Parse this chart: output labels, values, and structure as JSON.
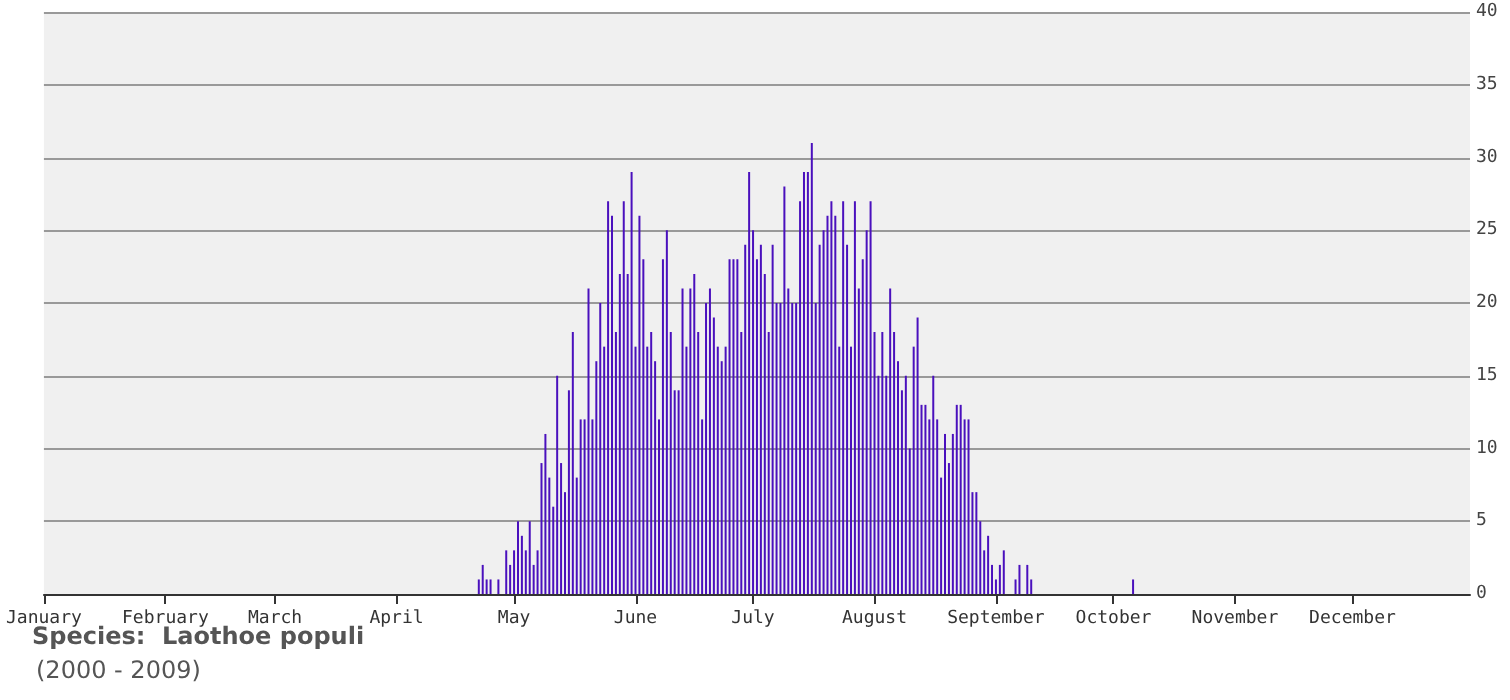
{
  "chart_data": {
    "type": "bar",
    "color": "#4a10bd",
    "x": [
      "--04-22",
      "--04-23",
      "--04-24",
      "--04-25",
      "--04-27",
      "--04-29",
      "--04-30",
      "--05-01",
      "--05-02",
      "--05-03",
      "--05-04",
      "--05-05",
      "--05-06",
      "--05-07",
      "--05-08",
      "--05-09",
      "--05-10",
      "--05-11",
      "--05-12",
      "--05-13",
      "--05-14",
      "--05-15",
      "--05-16",
      "--05-17",
      "--05-18",
      "--05-19",
      "--05-20",
      "--05-21",
      "--05-22",
      "--05-23",
      "--05-24",
      "--05-25",
      "--05-26",
      "--05-27",
      "--05-28",
      "--05-29",
      "--05-30",
      "--05-31",
      "--06-01",
      "--06-02",
      "--06-03",
      "--06-04",
      "--06-05",
      "--06-06",
      "--06-07",
      "--06-08",
      "--06-09",
      "--06-10",
      "--06-11",
      "--06-12",
      "--06-13",
      "--06-14",
      "--06-15",
      "--06-16",
      "--06-17",
      "--06-18",
      "--06-19",
      "--06-20",
      "--06-21",
      "--06-22",
      "--06-23",
      "--06-24",
      "--06-25",
      "--06-26",
      "--06-27",
      "--06-28",
      "--06-29",
      "--06-30",
      "--07-01",
      "--07-02",
      "--07-03",
      "--07-04",
      "--07-05",
      "--07-06",
      "--07-07",
      "--07-08",
      "--07-09",
      "--07-10",
      "--07-11",
      "--07-12",
      "--07-13",
      "--07-14",
      "--07-15",
      "--07-16",
      "--07-17",
      "--07-18",
      "--07-19",
      "--07-20",
      "--07-21",
      "--07-22",
      "--07-23",
      "--07-24",
      "--07-25",
      "--07-26",
      "--07-27",
      "--07-28",
      "--07-29",
      "--07-30",
      "--07-31",
      "--08-01",
      "--08-02",
      "--08-03",
      "--08-04",
      "--08-05",
      "--08-06",
      "--08-07",
      "--08-08",
      "--08-09",
      "--08-10",
      "--08-11",
      "--08-12",
      "--08-13",
      "--08-14",
      "--08-15",
      "--08-16",
      "--08-17",
      "--08-18",
      "--08-19",
      "--08-20",
      "--08-21",
      "--08-22",
      "--08-23",
      "--08-24",
      "--08-25",
      "--08-26",
      "--08-27",
      "--08-28",
      "--08-29",
      "--08-30",
      "--08-31",
      "--09-01",
      "--09-02",
      "--09-03",
      "--09-06",
      "--09-07",
      "--09-09",
      "--09-10",
      "--10-06"
    ],
    "values": [
      1,
      2,
      1,
      1,
      1,
      3,
      2,
      3,
      5,
      4,
      3,
      5,
      2,
      3,
      9,
      11,
      8,
      6,
      15,
      9,
      7,
      14,
      18,
      8,
      12,
      12,
      21,
      12,
      16,
      20,
      17,
      27,
      26,
      18,
      22,
      27,
      22,
      29,
      17,
      26,
      23,
      17,
      18,
      16,
      12,
      23,
      25,
      18,
      14,
      14,
      21,
      17,
      21,
      22,
      18,
      12,
      20,
      21,
      19,
      17,
      16,
      17,
      23,
      23,
      23,
      18,
      24,
      29,
      25,
      23,
      24,
      22,
      18,
      24,
      20,
      20,
      28,
      21,
      20,
      20,
      27,
      29,
      29,
      31,
      20,
      24,
      25,
      26,
      27,
      26,
      17,
      27,
      24,
      17,
      27,
      21,
      23,
      25,
      27,
      18,
      15,
      18,
      15,
      21,
      18,
      16,
      14,
      15,
      10,
      17,
      19,
      13,
      13,
      12,
      15,
      12,
      8,
      11,
      9,
      11,
      13,
      13,
      12,
      12,
      7,
      7,
      5,
      3,
      4,
      2,
      1,
      2,
      3,
      1,
      2,
      2,
      1,
      1
    ],
    "xlim": [
      "--01-01",
      "--12-31"
    ],
    "xticks": [
      {
        "value": "--01-01",
        "label": "January"
      },
      {
        "value": "--02-01",
        "label": "February"
      },
      {
        "value": "--03-01",
        "label": "March"
      },
      {
        "value": "--04-01",
        "label": "April"
      },
      {
        "value": "--05-01",
        "label": "May"
      },
      {
        "value": "--06-01",
        "label": "June"
      },
      {
        "value": "--07-01",
        "label": "July"
      },
      {
        "value": "--08-01",
        "label": "August"
      },
      {
        "value": "--09-01",
        "label": "September"
      },
      {
        "value": "--10-01",
        "label": "October"
      },
      {
        "value": "--11-01",
        "label": "November"
      },
      {
        "value": "--12-01",
        "label": "December"
      }
    ],
    "ylim": [
      0,
      40
    ],
    "yticks": [
      0,
      5,
      10,
      15,
      20,
      25,
      30,
      35,
      40
    ],
    "grid": "y",
    "annotations": [
      "Species:  Laothoe populi",
      "(2000 - 2009)"
    ]
  }
}
